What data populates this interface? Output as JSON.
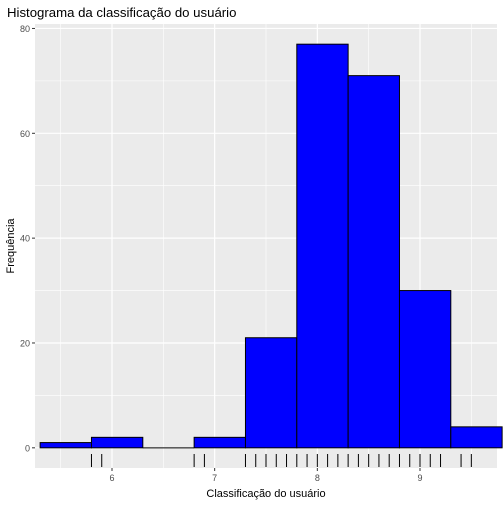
{
  "chart_data": {
    "type": "bar",
    "title": "Histograma da classificação do usuário",
    "xlabel": "Classificação do usuário",
    "ylabel": "Frequência",
    "xlim": [
      5.25,
      9.75
    ],
    "ylim": [
      -3.85,
      80.85
    ],
    "x_ticks": [
      6,
      7,
      8,
      9
    ],
    "y_ticks": [
      0,
      20,
      40,
      60,
      80
    ],
    "bin_width": 0.5,
    "bins": [
      {
        "start": 5.3,
        "end": 5.8,
        "count": 1
      },
      {
        "start": 5.8,
        "end": 6.3,
        "count": 2
      },
      {
        "start": 6.3,
        "end": 6.8,
        "count": 0
      },
      {
        "start": 6.8,
        "end": 7.3,
        "count": 2
      },
      {
        "start": 7.3,
        "end": 7.8,
        "count": 21
      },
      {
        "start": 7.8,
        "end": 8.3,
        "count": 77
      },
      {
        "start": 8.3,
        "end": 8.8,
        "count": 71
      },
      {
        "start": 8.8,
        "end": 9.3,
        "count": 30
      },
      {
        "start": 9.3,
        "end": 9.8,
        "count": 4
      }
    ],
    "rug": [
      5.8,
      5.9,
      6.8,
      6.9,
      7.3,
      7.4,
      7.5,
      7.6,
      7.7,
      7.8,
      7.9,
      8.0,
      8.1,
      8.2,
      8.3,
      8.4,
      8.5,
      8.6,
      8.7,
      8.8,
      8.9,
      9.0,
      9.1,
      9.2,
      9.4,
      9.5
    ],
    "colors": {
      "bar_fill": "#0000ff",
      "bar_stroke": "#000000",
      "panel_background": "#ebebeb",
      "grid": "#ffffff",
      "rug": "#000000",
      "text": "#000000",
      "tick_text": "#4d4d4d"
    },
    "grid": true,
    "legend": "none"
  }
}
